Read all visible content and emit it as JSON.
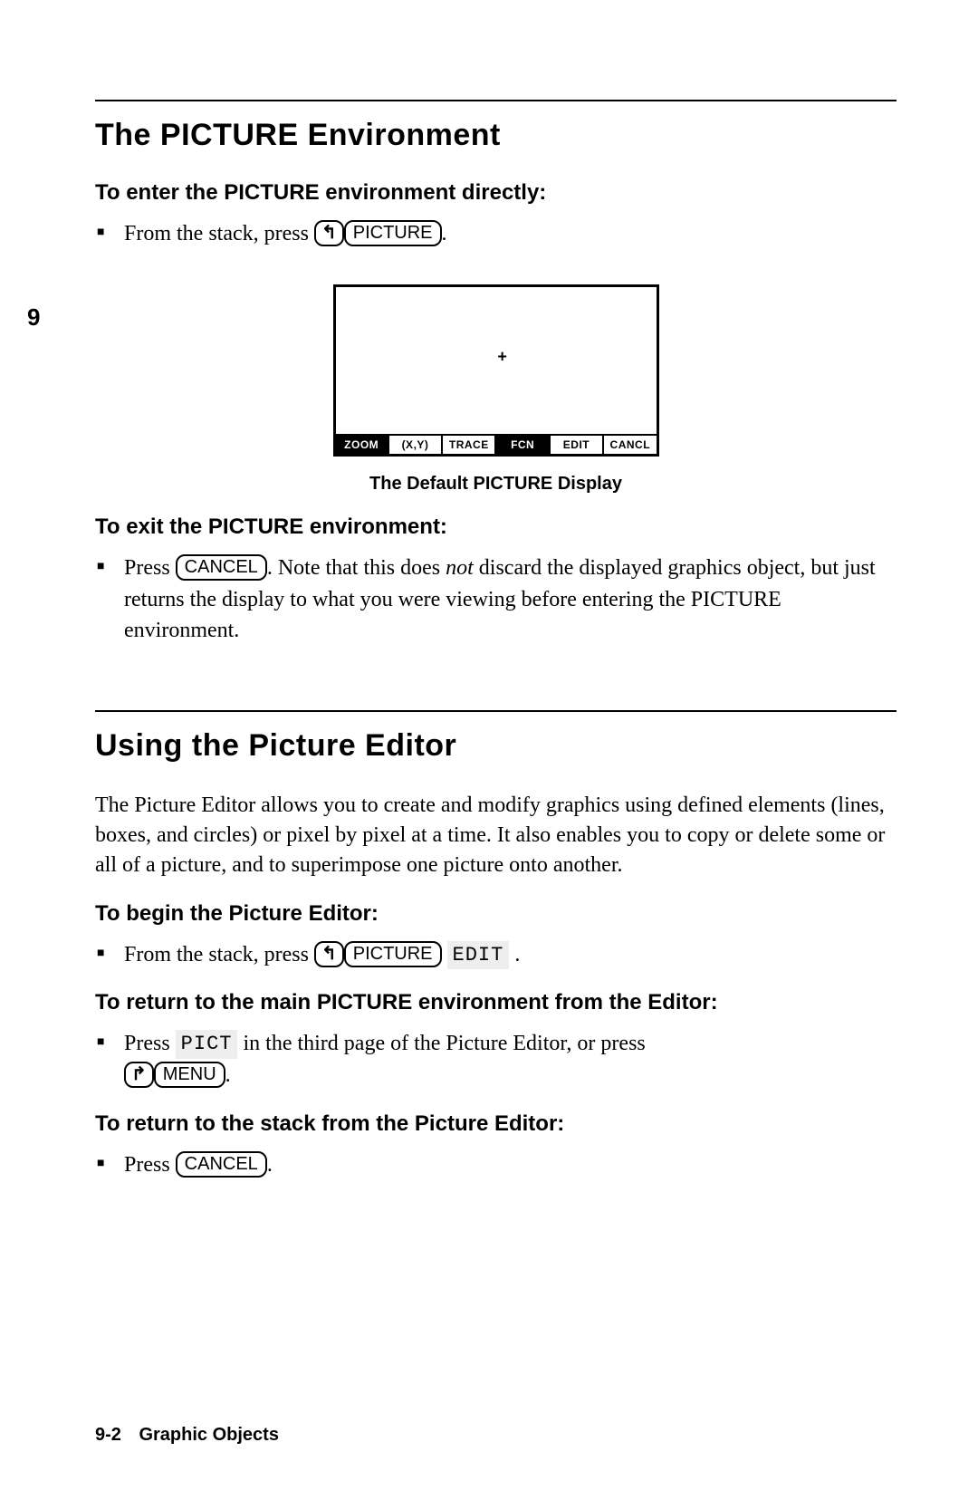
{
  "margin_number": "9",
  "section1": {
    "title": "The PICTURE Environment",
    "sub_enter": "To enter the PICTURE environment directly:",
    "enter_text_pre": "From the stack, press ",
    "key_left_shift": "↰",
    "key_picture": "PICTURE",
    "enter_text_post": "."
  },
  "display": {
    "plus": "+",
    "cells": [
      "ZOOM",
      "(X,Y)",
      "TRACE",
      "FCN",
      "EDIT",
      "CANCL"
    ],
    "cell_inverted": [
      true,
      false,
      false,
      true,
      false,
      false
    ],
    "caption": "The Default PICTURE Display"
  },
  "section1b": {
    "sub_exit": "To exit the PICTURE environment:",
    "exit_pre": "Press ",
    "key_cancel": "CANCEL",
    "exit_mid1": ". Note that this does ",
    "exit_not": "not",
    "exit_mid2": " discard the displayed graphics object, but just returns the display to what you were viewing before entering the PICTURE environment."
  },
  "section2": {
    "title": "Using the Picture Editor",
    "intro": "The Picture Editor allows you to create and modify graphics using defined elements (lines, boxes, and circles) or pixel by pixel at a time. It also enables you to copy or delete some or all of a picture, and to superimpose one picture onto another.",
    "sub_begin": "To begin the Picture Editor:",
    "begin_pre": "From the stack, press ",
    "key_left_shift": "↰",
    "key_picture": "PICTURE",
    "softkey_edit": "EDIT",
    "begin_post": " .",
    "sub_return1": "To return to the main PICTURE environment from the Editor:",
    "ret1_pre": "Press ",
    "softkey_pict": "PICT",
    "ret1_mid": " in the third page of the Picture Editor, or press ",
    "key_right_shift": "↱",
    "key_menu": "MENU",
    "ret1_post": ".",
    "sub_return2": "To return to the stack from the Picture Editor:",
    "ret2_pre": "Press ",
    "key_cancel": "CANCEL",
    "ret2_post": "."
  },
  "footer": {
    "page": "9-2",
    "chapter": "Graphic Objects"
  }
}
